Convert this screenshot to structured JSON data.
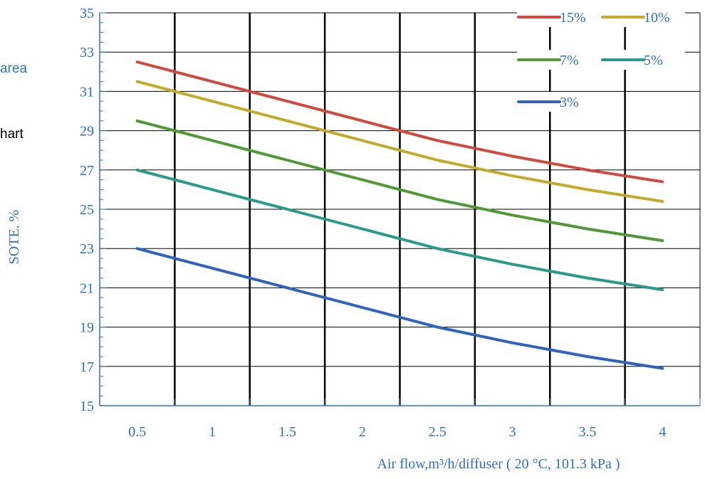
{
  "fragments": {
    "left_top": "area",
    "left_mid": "hart"
  },
  "chart_data": {
    "type": "line",
    "title": "",
    "xlabel": "Air flow,m³/h/diffuser ( 20 °C, 101.3 kPa )",
    "ylabel": "SOTE. %",
    "x": [
      0.5,
      1,
      1.5,
      2,
      2.5,
      3,
      3.5,
      4
    ],
    "x_tick_labels": [
      "0.5",
      "1",
      "1.5",
      "2",
      "2.5",
      "3",
      "3.5",
      "4"
    ],
    "xlim": [
      0.25,
      4.25
    ],
    "ylim": [
      15,
      35
    ],
    "y_ticks": [
      15,
      17,
      19,
      21,
      23,
      25,
      27,
      29,
      31,
      33,
      35
    ],
    "grid": true,
    "legend_position": "top-right",
    "series": [
      {
        "name": "15%",
        "color": "#cf4a3c",
        "values": [
          32.5,
          31.5,
          30.5,
          29.5,
          28.5,
          27.7,
          27.0,
          26.4
        ]
      },
      {
        "name": "10%",
        "color": "#c4a92a",
        "values": [
          31.5,
          30.5,
          29.5,
          28.5,
          27.5,
          26.7,
          26.0,
          25.4
        ]
      },
      {
        "name": "7%",
        "color": "#4f9a35",
        "values": [
          29.5,
          28.5,
          27.5,
          26.5,
          25.5,
          24.7,
          24.0,
          23.4
        ]
      },
      {
        "name": "5%",
        "color": "#2a9a8c",
        "values": [
          27.0,
          26.0,
          25.0,
          24.0,
          23.0,
          22.2,
          21.5,
          20.9
        ]
      },
      {
        "name": "3%",
        "color": "#2f63c0",
        "values": [
          23.0,
          22.0,
          21.0,
          20.0,
          19.0,
          18.2,
          17.5,
          16.9
        ]
      }
    ],
    "colors": {
      "axis": "#2e6fc0",
      "label": "#2e6fc0",
      "grid": "#000000"
    }
  }
}
